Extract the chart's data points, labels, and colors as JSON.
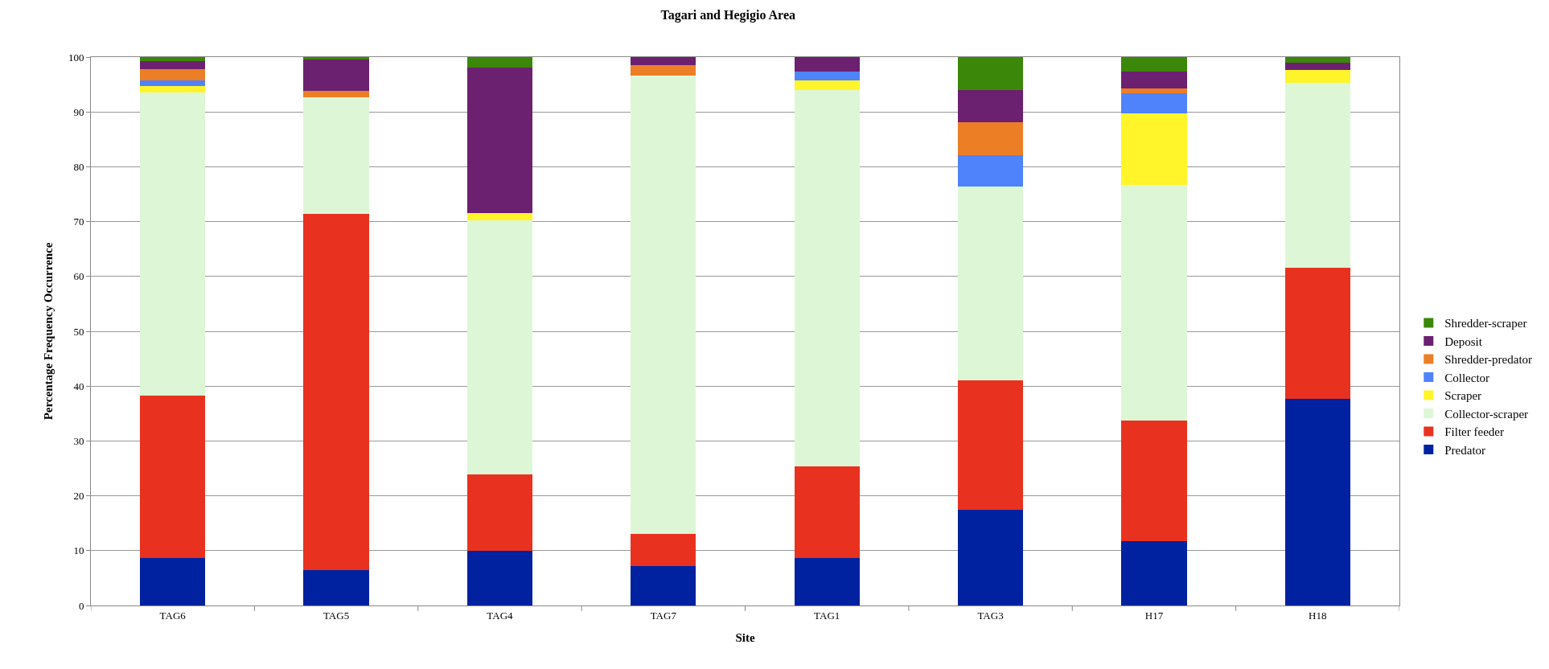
{
  "chart_data": {
    "type": "bar",
    "title": "Tagari and Hegigio Area",
    "xlabel": "Site",
    "ylabel": "Percentage Frequency Occurrence",
    "categories": [
      "TAG6",
      "TAG5",
      "TAG4",
      "TAG7",
      "TAG1",
      "TAG3",
      "H17",
      "H18"
    ],
    "stacked": true,
    "series": [
      {
        "name": "Predator",
        "color": "#0021a0",
        "values": [
          8.7,
          6.5,
          10.0,
          7.2,
          8.7,
          17.4,
          11.7,
          37.7
        ]
      },
      {
        "name": "Filter feeder",
        "color": "#e8321f",
        "values": [
          29.6,
          64.9,
          13.9,
          5.9,
          16.7,
          23.7,
          22.0,
          23.9
        ]
      },
      {
        "name": "Collector-scraper",
        "color": "#ddf7d6",
        "values": [
          55.2,
          21.2,
          46.3,
          83.6,
          68.6,
          35.3,
          43.0,
          33.7
        ]
      },
      {
        "name": "Scraper",
        "color": "#fff52a",
        "values": [
          1.2,
          0,
          1.4,
          0,
          1.7,
          0,
          13.0,
          2.3
        ]
      },
      {
        "name": "Collector",
        "color": "#4f83fb",
        "values": [
          1.0,
          0,
          0,
          0,
          1.7,
          5.7,
          3.7,
          0
        ]
      },
      {
        "name": "Shredder-predator",
        "color": "#ec7e26",
        "values": [
          2.1,
          1.3,
          0,
          1.9,
          0,
          6.0,
          0.9,
          0
        ]
      },
      {
        "name": "Deposit",
        "color": "#6c2070",
        "values": [
          1.4,
          5.7,
          26.5,
          1.4,
          2.6,
          5.9,
          3.0,
          1.4
        ]
      },
      {
        "name": "Shredder-scraper",
        "color": "#3b8709",
        "values": [
          0.8,
          0.4,
          1.9,
          0,
          0,
          6.0,
          2.7,
          1.0
        ]
      }
    ],
    "ylim": [
      0,
      100
    ],
    "yticks": [
      0,
      10,
      20,
      30,
      40,
      50,
      60,
      70,
      80,
      90,
      100
    ],
    "grid": "y",
    "legend": "right"
  }
}
